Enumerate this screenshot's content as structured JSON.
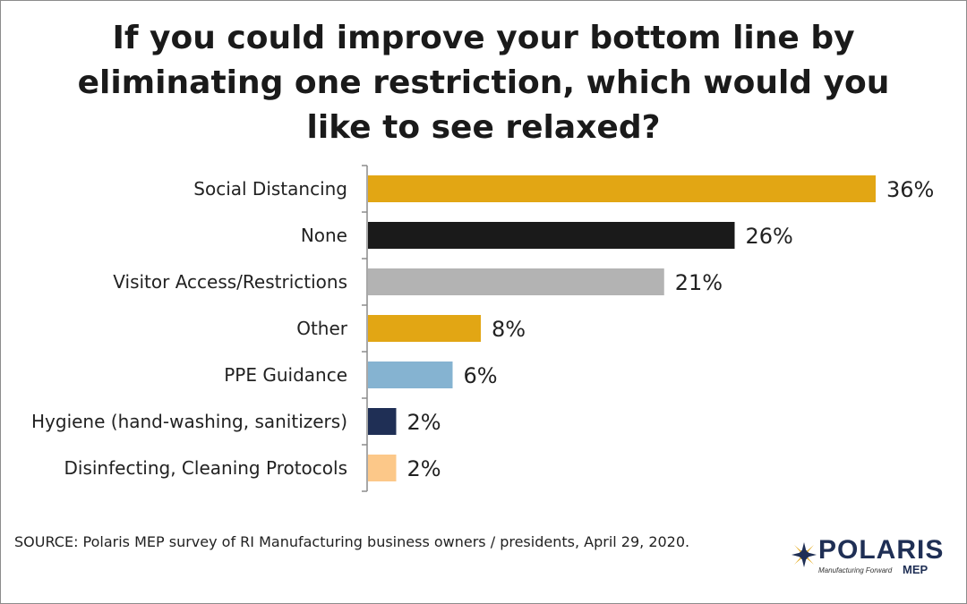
{
  "title_lines": [
    "If you could improve your bottom line by",
    "eliminating one restriction, which would you",
    "like to see relaxed?"
  ],
  "source": "SOURCE: Polaris MEP survey of RI Manufacturing business owners / presidents, April 29, 2020.",
  "logo": {
    "name": "POLARIS",
    "tagline": "Manufacturing Forward",
    "suffix": "MEP",
    "icon": "polaris-star-icon",
    "colors": {
      "navy": "#1f2f55",
      "gold": "#e2a614"
    }
  },
  "chart_data": {
    "type": "bar",
    "orientation": "horizontal",
    "categories": [
      "Social Distancing",
      "None",
      "Visitor Access/Restrictions",
      "Other",
      "PPE Guidance",
      "Hygiene (hand-washing, sanitizers)",
      "Disinfecting, Cleaning Protocols"
    ],
    "values": [
      36,
      26,
      21,
      8,
      6,
      2,
      2
    ],
    "labels": [
      "36%",
      "26%",
      "21%",
      "8%",
      "6%",
      "2%",
      "2%"
    ],
    "colors": [
      "#e2a614",
      "#1a1a1a",
      "#b3b3b3",
      "#e2a614",
      "#85b3d1",
      "#1f2f55",
      "#fcc889"
    ],
    "xlim": [
      0,
      36
    ],
    "grid": false,
    "legend": "none"
  }
}
